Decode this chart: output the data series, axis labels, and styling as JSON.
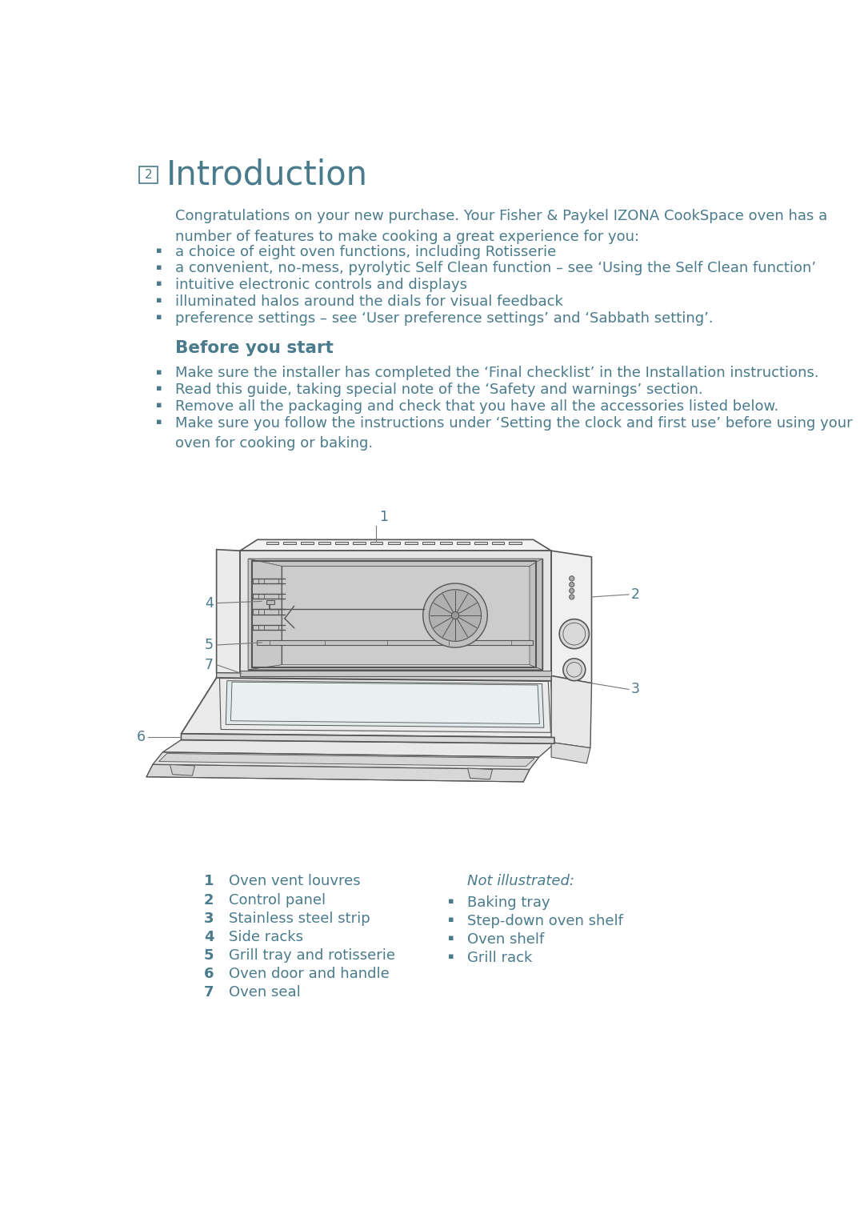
{
  "page_bg": "#ffffff",
  "text_color": "#4a7b8c",
  "page_num": "2",
  "page_title": "Introduction",
  "intro_text": "Congratulations on your new purchase. Your Fisher & Paykel IZONA CookSpace oven has a\nnumber of features to make cooking a great experience for you:",
  "intro_bullets": [
    "a choice of eight oven functions, including Rotisserie",
    "a convenient, no-mess, pyrolytic Self Clean function – see ‘Using the Self Clean function’",
    "intuitive electronic controls and displays",
    "illuminated halos around the dials for visual feedback",
    "preference settings – see ‘User preference settings’ and ‘Sabbath setting’."
  ],
  "section2_title": "Before you start",
  "section2_bullets": [
    "Make sure the installer has completed the ‘Final checklist’ in the Installation instructions.",
    "Read this guide, taking special note of the ‘Safety and warnings’ section.",
    "Remove all the packaging and check that you have all the accessories listed below.",
    "Make sure you follow the instructions under ‘Setting the clock and first use’ before using your\noven for cooking or baking."
  ],
  "numbered_items": [
    {
      "num": "1",
      "text": "Oven vent louvres"
    },
    {
      "num": "2",
      "text": "Control panel"
    },
    {
      "num": "3",
      "text": "Stainless steel strip"
    },
    {
      "num": "4",
      "text": "Side racks"
    },
    {
      "num": "5",
      "text": "Grill tray and rotisserie"
    },
    {
      "num": "6",
      "text": "Oven door and handle"
    },
    {
      "num": "7",
      "text": "Oven seal"
    }
  ],
  "not_illustrated_title": "Not illustrated:",
  "not_illustrated_items": [
    "Baking tray",
    "Step-down oven shelf",
    "Oven shelf",
    "Grill rack"
  ]
}
